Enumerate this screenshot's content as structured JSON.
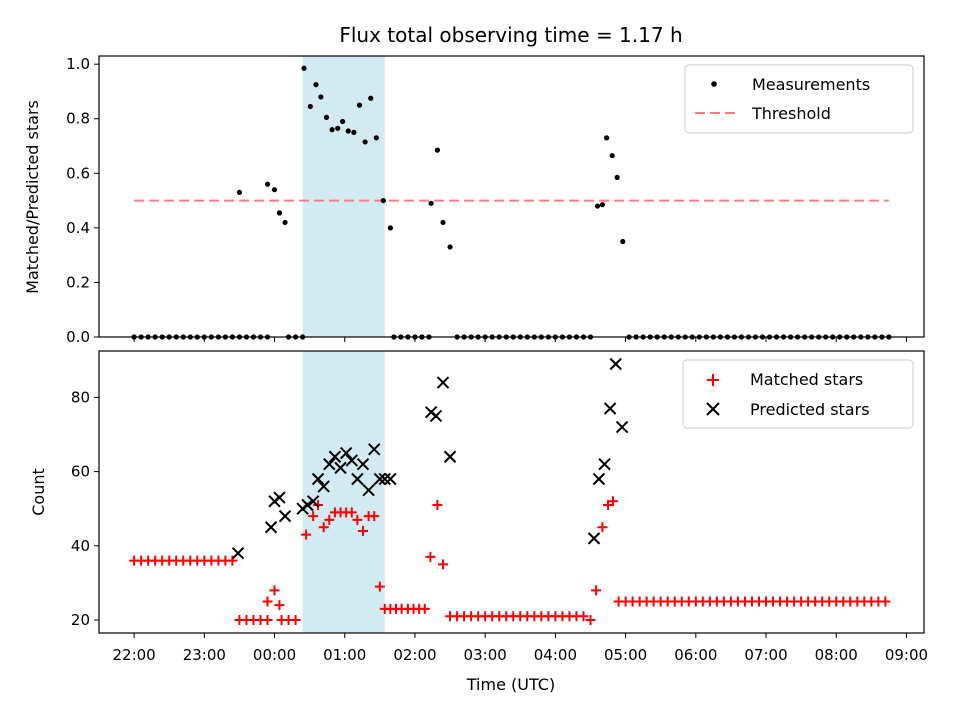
{
  "chart_data": {
    "title": "Flux total observing time = 1.17 h",
    "xlabel": "Time (UTC)",
    "x_ticks": [
      "22:00",
      "23:00",
      "00:00",
      "01:00",
      "02:00",
      "03:00",
      "04:00",
      "05:00",
      "06:00",
      "07:00",
      "08:00",
      "09:00"
    ],
    "shaded_interval_hours": [
      0.4,
      1.57
    ],
    "colors": {
      "measurement": "#000000",
      "threshold": "#ff7b7b",
      "matched": "#ff0000",
      "predicted": "#000000",
      "shade": "#add8e6"
    },
    "panels": [
      {
        "type": "scatter",
        "ylabel": "Matched/Predicted stars",
        "ylim": [
          0,
          1.03
        ],
        "yticks": [
          "0.0",
          "0.2",
          "0.4",
          "0.6",
          "0.8",
          "1.0"
        ],
        "legend_position": "top-right",
        "series": [
          {
            "name": "Measurements",
            "x_hours": [
              -2.0,
              -1.9,
              -1.8,
              -1.7,
              -1.6,
              -1.5,
              -1.4,
              -1.3,
              -1.2,
              -1.1,
              -1.0,
              -0.9,
              -0.8,
              -0.7,
              -0.6,
              -0.5,
              -0.4,
              -0.3,
              -0.2,
              -0.1,
              0.2,
              0.3,
              0.4,
              1.7,
              1.8,
              1.9,
              2.0,
              2.1,
              2.2,
              2.6,
              2.7,
              2.8,
              2.9,
              3.0,
              3.1,
              3.2,
              3.3,
              3.4,
              3.5,
              3.6,
              3.7,
              3.8,
              3.9,
              4.0,
              4.1,
              4.2,
              4.3,
              4.4,
              4.5,
              5.05,
              5.15,
              5.25,
              5.35,
              5.45,
              5.55,
              5.65,
              5.75,
              5.85,
              5.95,
              6.05,
              6.15,
              6.25,
              6.35,
              6.45,
              6.55,
              6.65,
              6.75,
              6.85,
              6.95,
              7.05,
              7.15,
              7.25,
              7.35,
              7.45,
              7.55,
              7.65,
              7.75,
              7.85,
              7.95,
              8.05,
              8.15,
              8.25,
              8.35,
              8.45,
              8.55,
              8.65,
              8.75,
              -0.5,
              -0.1,
              0.0,
              0.07,
              0.15,
              0.42,
              0.51,
              0.59,
              0.66,
              0.74,
              0.82,
              0.9,
              0.97,
              1.05,
              1.13,
              1.21,
              1.29,
              1.37,
              1.45,
              1.55,
              1.65,
              2.23,
              2.32,
              2.4,
              2.5,
              4.6,
              4.67,
              4.73,
              4.81,
              4.88,
              4.96
            ],
            "y": [
              0,
              0,
              0,
              0,
              0,
              0,
              0,
              0,
              0,
              0,
              0,
              0,
              0,
              0,
              0,
              0,
              0,
              0,
              0,
              0,
              0,
              0,
              0,
              0,
              0,
              0,
              0,
              0,
              0,
              0,
              0,
              0,
              0,
              0,
              0,
              0,
              0,
              0,
              0,
              0,
              0,
              0,
              0,
              0,
              0,
              0,
              0,
              0,
              0,
              0,
              0,
              0,
              0,
              0,
              0,
              0,
              0,
              0,
              0,
              0,
              0,
              0,
              0,
              0,
              0,
              0,
              0,
              0,
              0,
              0,
              0,
              0,
              0,
              0,
              0,
              0,
              0,
              0,
              0,
              0,
              0,
              0,
              0,
              0,
              0,
              0,
              0,
              0.53,
              0.56,
              0.54,
              0.455,
              0.42,
              0.985,
              0.845,
              0.925,
              0.88,
              0.805,
              0.76,
              0.765,
              0.79,
              0.755,
              0.75,
              0.85,
              0.715,
              0.875,
              0.73,
              0.5,
              0.4,
              0.49,
              0.685,
              0.42,
              0.33,
              0.48,
              0.485,
              0.73,
              0.665,
              0.585,
              0.35
            ]
          },
          {
            "name": "Threshold",
            "x_hours": [
              -2.0,
              8.75
            ],
            "y": [
              0.5,
              0.5
            ]
          }
        ]
      },
      {
        "type": "scatter",
        "ylabel": "Count",
        "ylim": [
          16.5,
          92.5
        ],
        "yticks": [
          "20",
          "40",
          "60",
          "80"
        ],
        "legend_position": "top-right",
        "series": [
          {
            "name": "Matched stars",
            "x_hours": [
              -2.0,
              -1.9,
              -1.8,
              -1.7,
              -1.6,
              -1.5,
              -1.4,
              -1.3,
              -1.2,
              -1.1,
              -1.0,
              -0.9,
              -0.8,
              -0.7,
              -0.6,
              -0.5,
              -0.4,
              -0.3,
              -0.2,
              -0.1,
              0.1,
              0.2,
              0.3,
              -0.1,
              0.0,
              0.07,
              0.45,
              0.55,
              0.62,
              0.7,
              0.78,
              0.86,
              0.94,
              1.02,
              1.1,
              1.18,
              1.26,
              1.34,
              1.42,
              1.5,
              1.57,
              1.65,
              1.73,
              1.81,
              1.9,
              1.98,
              2.06,
              2.14,
              2.22,
              2.32,
              2.4,
              2.5,
              2.6,
              2.7,
              2.8,
              2.9,
              3.0,
              3.1,
              3.2,
              3.3,
              3.4,
              3.5,
              3.6,
              3.7,
              3.8,
              3.9,
              4.0,
              4.1,
              4.2,
              4.3,
              4.4,
              4.5,
              4.58,
              4.67,
              4.75,
              4.82,
              4.9,
              5.0,
              5.1,
              5.2,
              5.3,
              5.4,
              5.5,
              5.6,
              5.7,
              5.8,
              5.9,
              6.0,
              6.1,
              6.2,
              6.3,
              6.4,
              6.5,
              6.6,
              6.7,
              6.8,
              6.9,
              7.0,
              7.1,
              7.2,
              7.3,
              7.4,
              7.5,
              7.6,
              7.7,
              7.8,
              7.9,
              8.0,
              8.1,
              8.2,
              8.3,
              8.4,
              8.5,
              8.6,
              8.7
            ],
            "y": [
              36,
              36,
              36,
              36,
              36,
              36,
              36,
              36,
              36,
              36,
              36,
              36,
              36,
              36,
              36,
              20,
              20,
              20,
              20,
              20,
              20,
              20,
              20,
              25,
              28,
              24,
              43,
              48,
              51,
              45,
              47,
              49,
              49,
              49,
              49,
              47,
              44,
              48,
              48,
              29,
              23,
              23,
              23,
              23,
              23,
              23,
              23,
              23,
              37,
              51,
              35,
              21,
              21,
              21,
              21,
              21,
              21,
              21,
              21,
              21,
              21,
              21,
              21,
              21,
              21,
              21,
              21,
              21,
              21,
              21,
              21,
              20,
              28,
              45,
              51,
              52,
              25,
              25,
              25,
              25,
              25,
              25,
              25,
              25,
              25,
              25,
              25,
              25,
              25,
              25,
              25,
              25,
              25,
              25,
              25,
              25,
              25,
              25,
              25,
              25,
              25,
              25,
              25,
              25,
              25,
              25,
              25,
              25,
              25,
              25,
              25,
              25,
              25,
              25,
              25
            ]
          },
          {
            "name": "Predicted stars",
            "x_hours": [
              -0.52,
              -0.05,
              0.0,
              0.07,
              0.15,
              0.4,
              0.47,
              0.55,
              0.62,
              0.7,
              0.78,
              0.86,
              0.94,
              1.02,
              1.1,
              1.18,
              1.26,
              1.34,
              1.42,
              1.5,
              1.57,
              1.65,
              2.23,
              2.3,
              2.4,
              2.5,
              4.55,
              4.62,
              4.7,
              4.78,
              4.86,
              4.95
            ],
            "y": [
              38,
              45,
              52,
              53,
              48,
              50,
              51,
              52,
              58,
              56,
              62,
              64,
              61,
              65,
              63,
              58,
              62,
              55,
              66,
              58,
              58,
              58,
              76,
              75,
              84,
              64,
              42,
              58,
              62,
              77,
              89,
              72
            ]
          }
        ]
      }
    ]
  }
}
